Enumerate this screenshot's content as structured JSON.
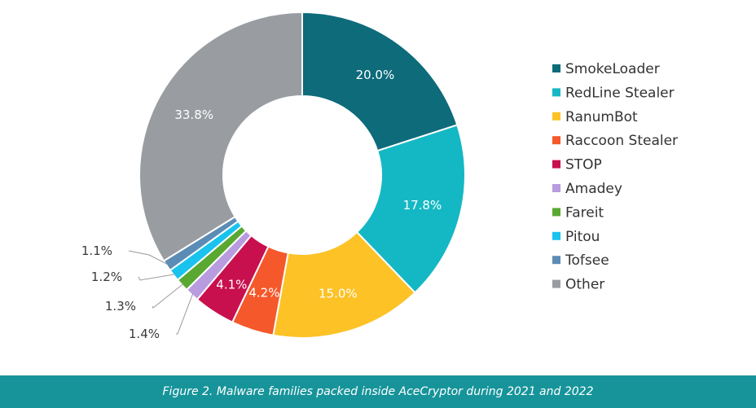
{
  "chart_data": {
    "type": "pie",
    "donut": true,
    "legend_position": "right",
    "slices": [
      {
        "name": "SmokeLoader",
        "value": 20.0,
        "label": "20.0%",
        "color": "#0d6b7a",
        "label_style": "inside"
      },
      {
        "name": "RedLine Stealer",
        "value": 17.8,
        "label": "17.8%",
        "color": "#14b8c4",
        "label_style": "inside"
      },
      {
        "name": "RanumBot",
        "value": 15.0,
        "label": "15.0%",
        "color": "#fcc226",
        "label_style": "inside"
      },
      {
        "name": "Raccoon Stealer",
        "value": 4.2,
        "label": "4.2%",
        "color": "#f5582a",
        "label_style": "inside"
      },
      {
        "name": "STOP",
        "value": 4.1,
        "label": "4.1%",
        "color": "#c8104e",
        "label_style": "inside"
      },
      {
        "name": "Amadey",
        "value": 1.4,
        "label": "1.4%",
        "color": "#b99be0",
        "label_style": "outside"
      },
      {
        "name": "Fareit",
        "value": 1.3,
        "label": "1.3%",
        "color": "#5aa832",
        "label_style": "outside"
      },
      {
        "name": "Pitou",
        "value": 1.2,
        "label": "1.2%",
        "color": "#19c3ee",
        "label_style": "outside"
      },
      {
        "name": "Tofsee",
        "value": 1.1,
        "label": "1.1%",
        "color": "#5b8cb5",
        "label_style": "outside"
      },
      {
        "name": "Other",
        "value": 33.8,
        "label": "33.8%",
        "color": "#999da1",
        "label_style": "inside"
      }
    ]
  },
  "caption": "Figure 2. Malware families packed inside AceCryptor during 2021 and 2022",
  "colors": {
    "caption_bar": "#17949a"
  }
}
